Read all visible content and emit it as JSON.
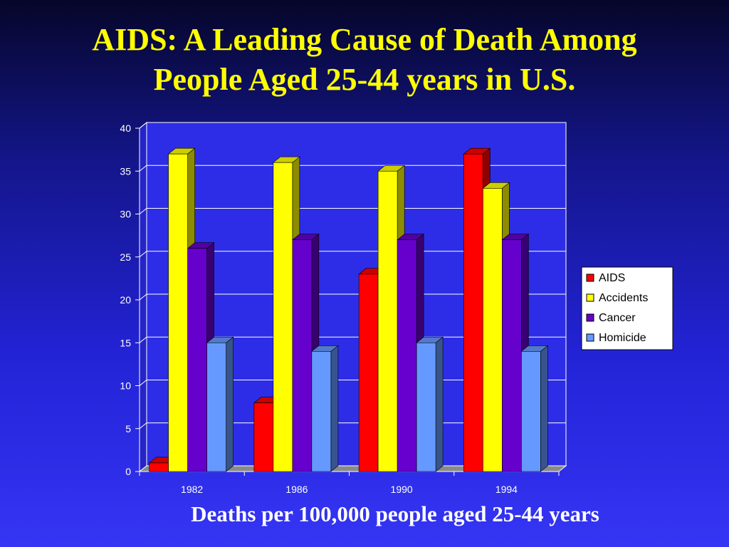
{
  "slide": {
    "title_line1": "AIDS: A Leading Cause of Death Among",
    "title_line2": "People Aged 25-44 years in U.S.",
    "caption": "Deaths per 100,000 people aged 25-44 years"
  },
  "chart_data": {
    "type": "bar",
    "title": "",
    "xlabel": "",
    "ylabel": "",
    "categories": [
      "1982",
      "1986",
      "1990",
      "1994"
    ],
    "ylim": [
      0,
      40
    ],
    "yticks": [
      0,
      5,
      10,
      15,
      20,
      25,
      30,
      35,
      40
    ],
    "grid": true,
    "legend_position": "right",
    "series": [
      {
        "name": "AIDS",
        "values": [
          1,
          8,
          23,
          37
        ],
        "color": "#ff0000"
      },
      {
        "name": "Accidents",
        "values": [
          37,
          36,
          35,
          33
        ],
        "color": "#ffff00"
      },
      {
        "name": "Cancer",
        "values": [
          26,
          27,
          27,
          27
        ],
        "color": "#6600cc"
      },
      {
        "name": "Homicide",
        "values": [
          15,
          14,
          15,
          14
        ],
        "color": "#6699ff"
      }
    ]
  }
}
